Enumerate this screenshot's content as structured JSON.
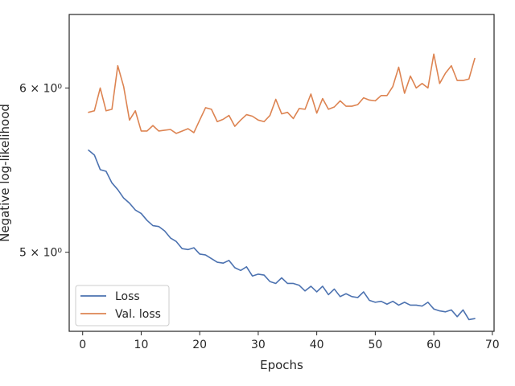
{
  "chart_data": {
    "type": "line",
    "title": "",
    "xlabel": "Epochs",
    "ylabel": "Negative log-likelihood",
    "xlim": [
      -2.3,
      70.3
    ],
    "ylim": [
      4.58,
      6.51
    ],
    "yscale": "log",
    "grid": false,
    "legend": "lower-left",
    "x_ticks": [
      0,
      10,
      20,
      30,
      40,
      50,
      60,
      70
    ],
    "y_ticks": [
      {
        "value": 5.0,
        "label": "5 × 10⁰"
      },
      {
        "value": 6.0,
        "label": "6 × 10⁰"
      }
    ],
    "x": [
      1,
      2,
      3,
      4,
      5,
      6,
      7,
      8,
      9,
      10,
      11,
      12,
      13,
      14,
      15,
      16,
      17,
      18,
      19,
      20,
      21,
      22,
      23,
      24,
      25,
      26,
      27,
      28,
      29,
      30,
      31,
      32,
      33,
      34,
      35,
      36,
      37,
      38,
      39,
      40,
      41,
      42,
      43,
      44,
      45,
      46,
      47,
      48,
      49,
      50,
      51,
      52,
      53,
      54,
      55,
      56,
      57,
      58,
      59,
      60,
      61,
      62,
      63,
      64,
      65,
      66,
      67
    ],
    "series": [
      {
        "name": "Loss",
        "color": "#4c72b0",
        "values": [
          5.6,
          5.57,
          5.48,
          5.47,
          5.4,
          5.36,
          5.31,
          5.28,
          5.24,
          5.22,
          5.18,
          5.15,
          5.145,
          5.12,
          5.08,
          5.06,
          5.02,
          5.015,
          5.025,
          4.99,
          4.985,
          4.965,
          4.945,
          4.94,
          4.955,
          4.915,
          4.9,
          4.92,
          4.87,
          4.88,
          4.875,
          4.84,
          4.83,
          4.86,
          4.83,
          4.83,
          4.82,
          4.79,
          4.815,
          4.785,
          4.815,
          4.77,
          4.8,
          4.76,
          4.775,
          4.76,
          4.755,
          4.785,
          4.74,
          4.73,
          4.735,
          4.72,
          4.735,
          4.715,
          4.73,
          4.715,
          4.715,
          4.71,
          4.73,
          4.695,
          4.685,
          4.68,
          4.69,
          4.655,
          4.69,
          4.64,
          4.645
        ]
      },
      {
        "name": "Val. loss",
        "color": "#dd8452",
        "values": [
          5.84,
          5.85,
          6.0,
          5.85,
          5.86,
          6.15,
          6.01,
          5.79,
          5.85,
          5.72,
          5.72,
          5.755,
          5.72,
          5.725,
          5.73,
          5.705,
          5.72,
          5.735,
          5.71,
          5.79,
          5.87,
          5.86,
          5.78,
          5.795,
          5.82,
          5.75,
          5.79,
          5.825,
          5.815,
          5.79,
          5.78,
          5.82,
          5.925,
          5.83,
          5.84,
          5.8,
          5.865,
          5.86,
          5.96,
          5.835,
          5.93,
          5.86,
          5.875,
          5.915,
          5.88,
          5.88,
          5.89,
          5.935,
          5.92,
          5.915,
          5.95,
          5.95,
          6.01,
          6.14,
          5.965,
          6.08,
          6.0,
          6.03,
          6.0,
          6.23,
          6.03,
          6.1,
          6.15,
          6.05,
          6.05,
          6.06,
          6.2
        ]
      }
    ]
  }
}
